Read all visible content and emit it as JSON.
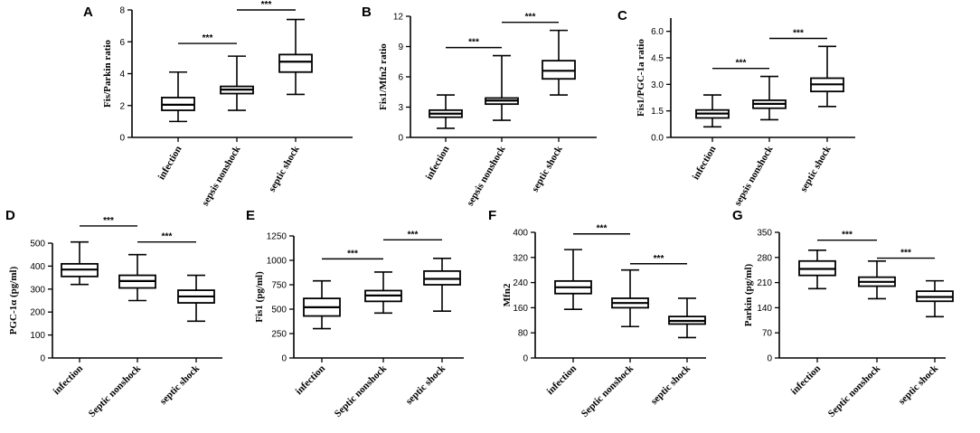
{
  "chart_data": [
    {
      "type": "box",
      "panel": "A",
      "ylabel": "Fis/Parkin ratio",
      "ylim": [
        0,
        8
      ],
      "yticks": [
        0,
        2,
        4,
        6,
        8
      ],
      "categories": [
        "infection",
        "sepsis nonshock",
        "septic shock"
      ],
      "boxes": [
        {
          "min": 1.0,
          "q1": 1.7,
          "median": 2.05,
          "q3": 2.5,
          "max": 4.1
        },
        {
          "min": 1.7,
          "q1": 2.75,
          "median": 3.0,
          "q3": 3.2,
          "max": 5.1
        },
        {
          "min": 2.7,
          "q1": 4.1,
          "median": 4.75,
          "q3": 5.2,
          "max": 7.4
        }
      ],
      "significance": [
        {
          "from": 0,
          "to": 1,
          "y": 5.9,
          "label": "***"
        },
        {
          "from": 1,
          "to": 2,
          "y": 8.0,
          "label": "***"
        }
      ]
    },
    {
      "type": "box",
      "panel": "B",
      "ylabel": "Fis1/Mfn2 ratio",
      "ylim": [
        0,
        12
      ],
      "yticks": [
        0,
        3,
        6,
        9,
        12
      ],
      "categories": [
        "infection",
        "sepsis nonshock",
        "septic shock"
      ],
      "boxes": [
        {
          "min": 0.9,
          "q1": 2.0,
          "median": 2.35,
          "q3": 2.7,
          "max": 4.2
        },
        {
          "min": 1.7,
          "q1": 3.3,
          "median": 3.65,
          "q3": 3.9,
          "max": 8.1
        },
        {
          "min": 4.2,
          "q1": 5.8,
          "median": 6.6,
          "q3": 7.6,
          "max": 10.6
        }
      ],
      "significance": [
        {
          "from": 0,
          "to": 1,
          "y": 8.9,
          "label": "***"
        },
        {
          "from": 1,
          "to": 2,
          "y": 11.4,
          "label": "***"
        }
      ]
    },
    {
      "type": "box",
      "panel": "C",
      "ylabel": "Fis1/PGC-1a ratio",
      "ylim": [
        0,
        6.75
      ],
      "yticks": [
        0.0,
        1.5,
        3.0,
        4.5,
        6.0
      ],
      "ytick_decimals": 1,
      "categories": [
        "infection",
        "sepsis nonshock",
        "septic shock"
      ],
      "boxes": [
        {
          "min": 0.6,
          "q1": 1.1,
          "median": 1.35,
          "q3": 1.55,
          "max": 2.4
        },
        {
          "min": 1.0,
          "q1": 1.65,
          "median": 1.9,
          "q3": 2.1,
          "max": 3.45
        },
        {
          "min": 1.75,
          "q1": 2.6,
          "median": 3.0,
          "q3": 3.35,
          "max": 5.15
        }
      ],
      "significance": [
        {
          "from": 0,
          "to": 1,
          "y": 3.9,
          "label": "***"
        },
        {
          "from": 1,
          "to": 2,
          "y": 5.6,
          "label": "***"
        }
      ]
    },
    {
      "type": "box",
      "panel": "D",
      "ylabel": "PGC-1α (pg/ml)",
      "ylim": [
        0,
        500
      ],
      "yticks": [
        0,
        100,
        200,
        300,
        400,
        500
      ],
      "categories": [
        "infection",
        "Septic nonshock",
        "septic shock"
      ],
      "boxes": [
        {
          "min": 320,
          "q1": 355,
          "median": 385,
          "q3": 410,
          "max": 505
        },
        {
          "min": 250,
          "q1": 305,
          "median": 335,
          "q3": 360,
          "max": 450
        },
        {
          "min": 160,
          "q1": 240,
          "median": 268,
          "q3": 295,
          "max": 360
        }
      ],
      "significance": [
        {
          "from": 0,
          "to": 1,
          "y": 575,
          "label": "***"
        },
        {
          "from": 1,
          "to": 2,
          "y": 505,
          "label": "***"
        }
      ]
    },
    {
      "type": "box",
      "panel": "E",
      "ylabel": "Fis1 (pg/ml)",
      "ylim": [
        0,
        1250
      ],
      "yticks": [
        0,
        250,
        500,
        750,
        1000,
        1250
      ],
      "categories": [
        "infection",
        "Septic nonshock",
        "septic shock"
      ],
      "boxes": [
        {
          "min": 300,
          "q1": 430,
          "median": 520,
          "q3": 610,
          "max": 790
        },
        {
          "min": 460,
          "q1": 580,
          "median": 640,
          "q3": 690,
          "max": 880
        },
        {
          "min": 480,
          "q1": 750,
          "median": 810,
          "q3": 890,
          "max": 1020
        }
      ],
      "significance": [
        {
          "from": 0,
          "to": 1,
          "y": 1015,
          "label": "***"
        },
        {
          "from": 1,
          "to": 2,
          "y": 1210,
          "label": "***"
        }
      ]
    },
    {
      "type": "box",
      "panel": "F",
      "ylabel": "Mfn2",
      "ylim": [
        0,
        400
      ],
      "yticks": [
        0,
        80,
        160,
        240,
        320,
        400
      ],
      "categories": [
        "infection",
        "Septic nonshock",
        "septic shock"
      ],
      "boxes": [
        {
          "min": 155,
          "q1": 205,
          "median": 225,
          "q3": 245,
          "max": 345
        },
        {
          "min": 100,
          "q1": 160,
          "median": 175,
          "q3": 190,
          "max": 280
        },
        {
          "min": 65,
          "q1": 108,
          "median": 118,
          "q3": 132,
          "max": 190
        }
      ],
      "significance": [
        {
          "from": 0,
          "to": 1,
          "y": 395,
          "label": "***"
        },
        {
          "from": 1,
          "to": 2,
          "y": 300,
          "label": "***"
        }
      ]
    },
    {
      "type": "box",
      "panel": "G",
      "ylabel": "Parkin (pg/ml)",
      "ylim": [
        0,
        350
      ],
      "yticks": [
        0,
        70,
        140,
        210,
        280,
        350
      ],
      "categories": [
        "infection",
        "Septic nonshock",
        "septic shock"
      ],
      "boxes": [
        {
          "min": 193,
          "q1": 230,
          "median": 248,
          "q3": 270,
          "max": 300
        },
        {
          "min": 165,
          "q1": 200,
          "median": 212,
          "q3": 225,
          "max": 270
        },
        {
          "min": 115,
          "q1": 158,
          "median": 170,
          "q3": 186,
          "max": 215
        }
      ],
      "significance": [
        {
          "from": 0,
          "to": 1,
          "y": 328,
          "label": "***"
        },
        {
          "from": 1,
          "to": 2,
          "y": 278,
          "label": "***"
        }
      ]
    }
  ]
}
